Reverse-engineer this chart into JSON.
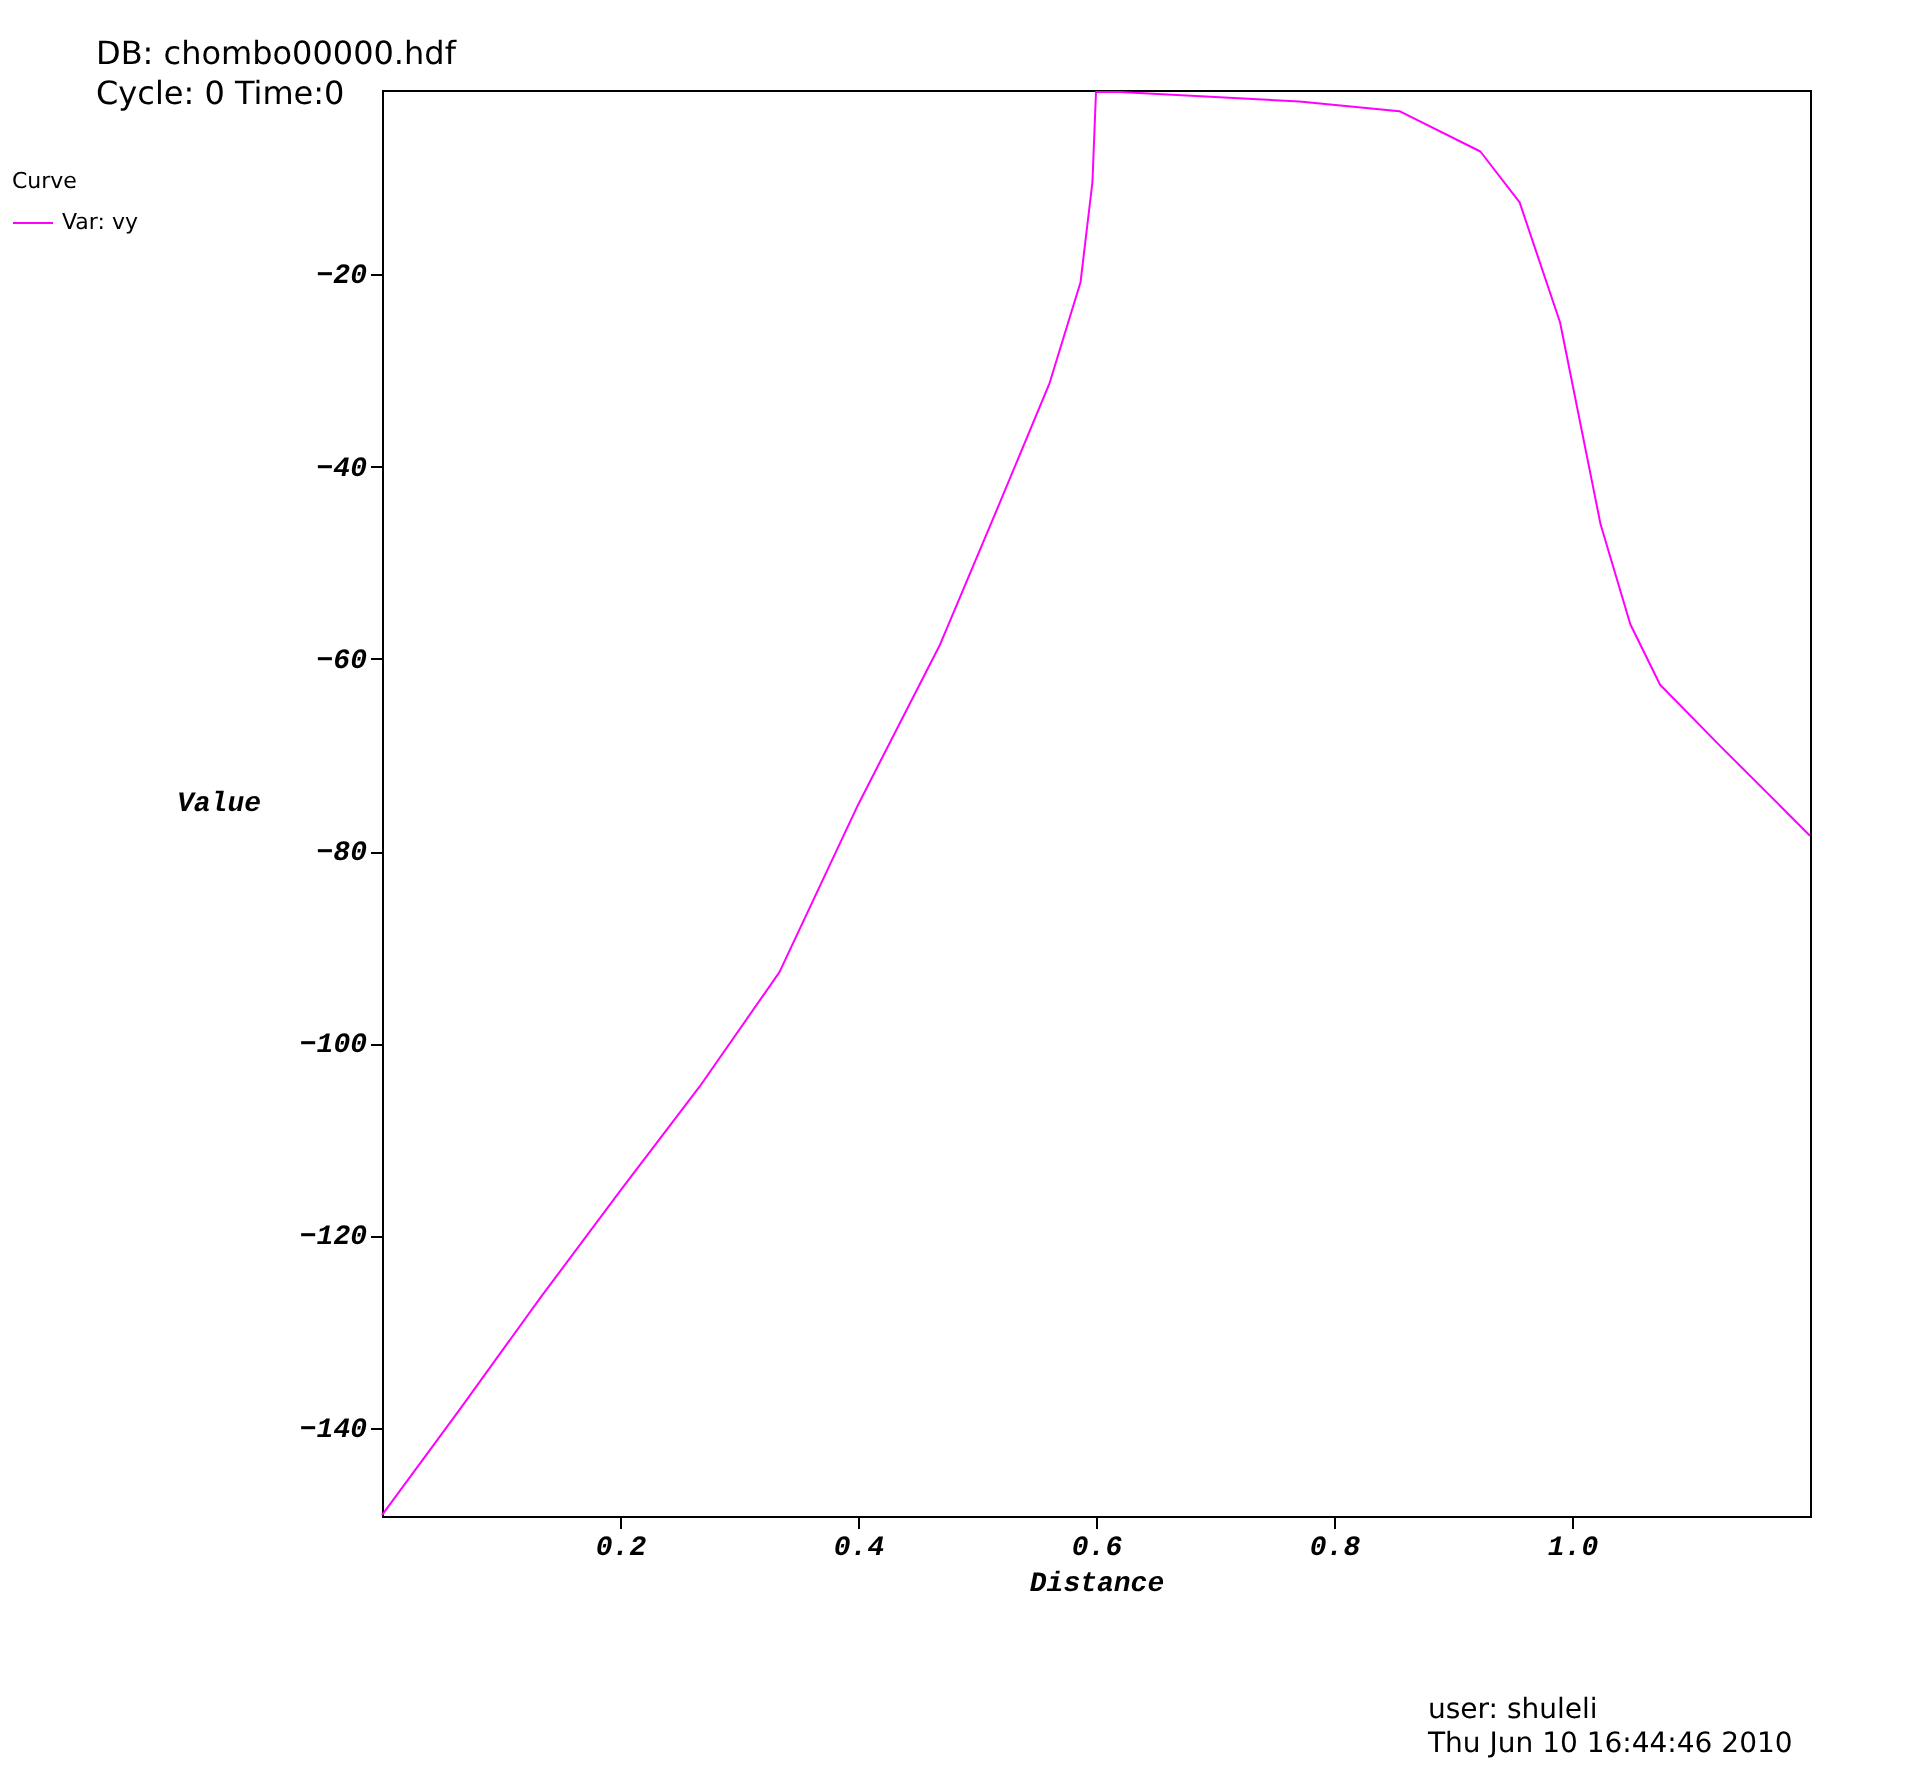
{
  "chart_data": {
    "type": "line",
    "xlabel": "Distance",
    "ylabel": "Value",
    "legend_title": "Curve",
    "legend": "top left",
    "grid": false,
    "marker": "none",
    "line_style": "solid",
    "xlim": [
      0,
      1.2
    ],
    "ylim": [
      -149.2,
      -0.8
    ],
    "xticks": [
      0.2,
      0.4,
      0.6,
      0.8,
      {
        "value": 1.0,
        "label": "1.0"
      }
    ],
    "yticks": [
      -140,
      -120,
      -100,
      -80,
      -60,
      -40,
      -20
    ],
    "x": [
      0,
      0.066,
      0.133,
      0.2,
      0.267,
      0.334,
      0.4,
      0.469,
      0.519,
      0.561,
      0.587,
      0.597,
      0.6,
      0.62,
      0.771,
      0.855,
      0.923,
      0.956,
      0.99,
      1.024,
      1.049,
      1.074,
      1.124,
      1.2
    ],
    "series": [
      {
        "name": "Var: vy",
        "color": "#ff00ff",
        "values": [
          -149.1,
          -138,
          -126.5,
          -115.4,
          -104.5,
          -92.6,
          -75.2,
          -58.5,
          -43.8,
          -31.3,
          -20.8,
          -10.4,
          -1.0,
          -1.0,
          -2,
          -3,
          -7.2,
          -12.5,
          -25,
          -46,
          -56.4,
          -62.7,
          -69,
          -78.4
        ]
      }
    ],
    "annotations": [
      "DB: chombo00000.hdf",
      "Cycle: 0       Time:0",
      "user: shuleli",
      "Thu Jun 10 16:44:46 2010"
    ]
  }
}
